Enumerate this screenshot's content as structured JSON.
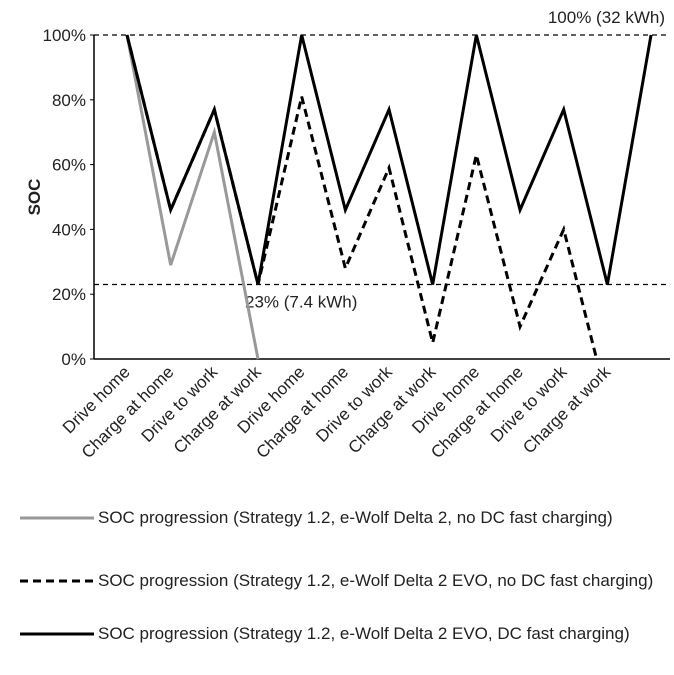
{
  "chart_data": {
    "type": "line",
    "y_label": "SOC",
    "categories": [
      "Drive home",
      "Charge at home",
      "Drive to work",
      "Charge at work",
      "Drive home",
      "Charge at home",
      "Drive to work",
      "Charge at work",
      "Drive home",
      "Charge at home",
      "Drive to work",
      "Charge at work",
      null
    ],
    "series": [
      {
        "name": "SOC progression (Strategy 1.2, e-Wolf Delta 2, no DC fast charging)",
        "color": "#999999",
        "line_style": "solid",
        "values": [
          100,
          29,
          70,
          0,
          null,
          null,
          null,
          null,
          null,
          null,
          null,
          null,
          null
        ]
      },
      {
        "name": "SOC progression (Strategy 1.2, e-Wolf Delta 2 EVO, no DC fast charging)",
        "color": "#000000",
        "line_style": "dashed",
        "values": [
          100,
          46,
          77,
          23,
          81,
          28,
          59,
          5,
          63,
          10,
          40,
          -13,
          null
        ]
      },
      {
        "name": "SOC progression (Strategy 1.2, e-Wolf Delta 2 EVO, DC fast charging)",
        "color": "#000000",
        "line_style": "solid",
        "values": [
          100,
          46,
          77,
          23,
          100,
          46,
          77,
          23,
          100,
          46,
          77,
          23,
          100
        ]
      }
    ],
    "reference_lines": [
      {
        "value": 100,
        "label": "100% (32 kWh)"
      },
      {
        "value": 23,
        "label": "23% (7.4 kWh)"
      }
    ],
    "ylim": [
      0,
      100
    ],
    "yticks": [
      {
        "value": 0,
        "label": "0%"
      },
      {
        "value": 20,
        "label": "20%"
      },
      {
        "value": 40,
        "label": "40%"
      },
      {
        "value": 60,
        "label": "60%"
      },
      {
        "value": 80,
        "label": "80%"
      },
      {
        "value": 100,
        "label": "100%"
      }
    ]
  }
}
